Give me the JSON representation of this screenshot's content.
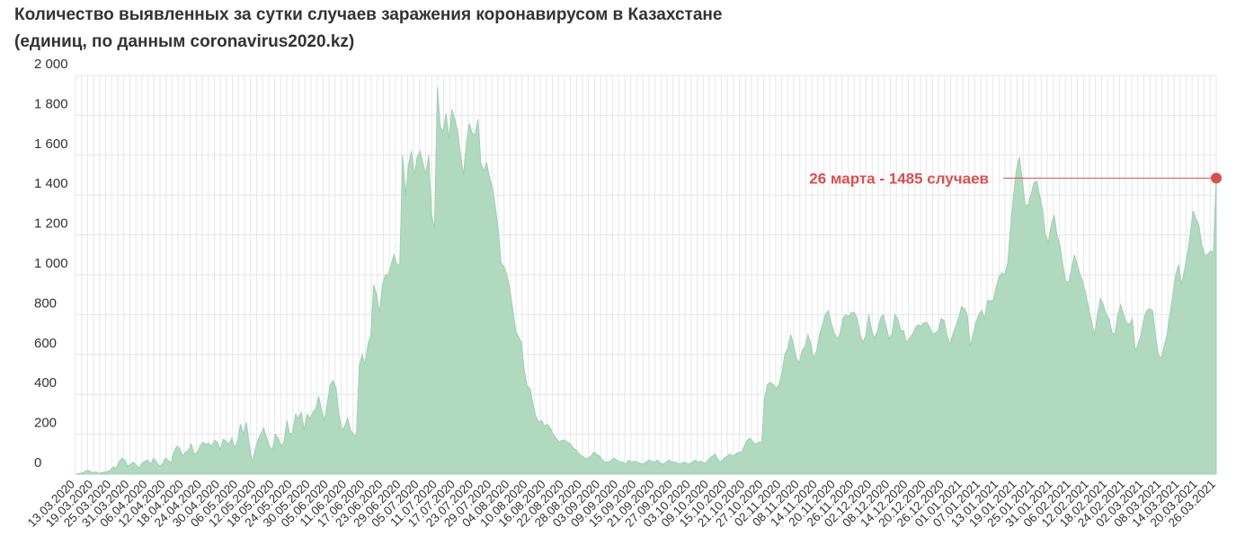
{
  "header": {
    "title_line1": "Количество выявленных за сутки случаев заражения коронавирусом в Казахстане",
    "title_line2": "(единиц, по данным coronavirus2020.kz)"
  },
  "colors": {
    "area_fill": "#b0d9c0",
    "area_stroke": "#9ecfb1",
    "grid": "#e6e6e6",
    "annotation": "#d94f4f"
  },
  "chart_data": {
    "type": "area",
    "title": "Количество выявленных за сутки случаев заражения коронавирусом в Казахстане (единиц, по данным coronavirus2020.kz)",
    "xlabel": "",
    "ylabel": "",
    "ylim": [
      0,
      2000
    ],
    "yticks": [
      0,
      200,
      400,
      600,
      800,
      1000,
      1200,
      1400,
      1600,
      1800,
      2000
    ],
    "ytick_labels": [
      "0",
      "200",
      "400",
      "600",
      "800",
      "1 000",
      "1 200",
      "1 400",
      "1 600",
      "1 800",
      "2 000"
    ],
    "x_tick_labels": [
      "13.03.2020",
      "19.03.2020",
      "25.03.2020",
      "31.03.2020",
      "06.04.2020",
      "12.04.2020",
      "18.04.2020",
      "24.04.2020",
      "30.04.2020",
      "06.05.2020",
      "12.05.2020",
      "18.05.2020",
      "24.05.2020",
      "30.05.2020",
      "05.06.2020",
      "11.06.2020",
      "17.06.2020",
      "23.06.2020",
      "29.06.2020",
      "05.07.2020",
      "11.07.2020",
      "17.07.2020",
      "23.07.2020",
      "29.07.2020",
      "04.08.2020",
      "10.08.2020",
      "16.08.2020",
      "22.08.2020",
      "28.08.2020",
      "03.09.2020",
      "09.09.2020",
      "15.09.2020",
      "21.09.2020",
      "27.09.2020",
      "03.10.2020",
      "09.10.2020",
      "15.10.2020",
      "21.10.2020",
      "27.10.2020",
      "02.11.2020",
      "08.11.2020",
      "14.11.2020",
      "20.11.2020",
      "26.11.2020",
      "02.12.2020",
      "08.12.2020",
      "14.12.2020",
      "20.12.2020",
      "26.12.2020",
      "01.01.2021",
      "07.01.2021",
      "13.01.2021",
      "19.01.2021",
      "25.01.2021",
      "31.01.2021",
      "06.02.2021",
      "12.02.2021",
      "18.02.2021",
      "24.02.2021",
      "02.03.2021",
      "08.03.2021",
      "14.03.2021",
      "20.03.2021",
      "26.03.2021"
    ],
    "grid": true,
    "series": [
      {
        "values": [
          0,
          2,
          5,
          10,
          20,
          15,
          5,
          12,
          3,
          8,
          10,
          12,
          20,
          35,
          30,
          60,
          80,
          70,
          40,
          50,
          60,
          45,
          30,
          55,
          65,
          70,
          50,
          80,
          60,
          40,
          50,
          80,
          70,
          55,
          110,
          140,
          130,
          90,
          110,
          120,
          150,
          100,
          105,
          140,
          160,
          150,
          155,
          140,
          170,
          160,
          120,
          175,
          165,
          150,
          180,
          130,
          170,
          250,
          200,
          260,
          150,
          60,
          120,
          170,
          200,
          230,
          180,
          140,
          120,
          200,
          180,
          140,
          160,
          270,
          200,
          210,
          300,
          280,
          310,
          220,
          300,
          280,
          310,
          330,
          390,
          320,
          270,
          360,
          450,
          470,
          430,
          300,
          220,
          240,
          280,
          220,
          200,
          190,
          540,
          600,
          550,
          650,
          700,
          950,
          900,
          810,
          950,
          1000,
          1000,
          1050,
          1100,
          1050,
          1050,
          1600,
          1400,
          1550,
          1620,
          1500,
          1590,
          1620,
          1560,
          1500,
          1600,
          1300,
          1230,
          1940,
          1740,
          1720,
          1810,
          1680,
          1830,
          1780,
          1720,
          1600,
          1500,
          1660,
          1760,
          1710,
          1700,
          1780,
          1560,
          1520,
          1560,
          1490,
          1440,
          1340,
          1230,
          1060,
          1040,
          1000,
          930,
          830,
          720,
          690,
          660,
          520,
          440,
          430,
          350,
          290,
          260,
          270,
          240,
          250,
          230,
          200,
          180,
          160,
          170,
          170,
          160,
          150,
          130,
          120,
          100,
          90,
          80,
          80,
          90,
          110,
          100,
          90,
          70,
          60,
          60,
          70,
          80,
          70,
          60,
          60,
          50,
          70,
          60,
          65,
          60,
          55,
          50,
          60,
          70,
          65,
          60,
          70,
          55,
          50,
          60,
          70,
          60,
          60,
          55,
          50,
          60,
          55,
          50,
          60,
          70,
          60,
          65,
          55,
          60,
          80,
          90,
          100,
          70,
          60,
          80,
          90,
          100,
          90,
          100,
          110,
          110,
          140,
          170,
          180,
          160,
          150,
          160,
          160,
          380,
          450,
          460,
          450,
          430,
          450,
          510,
          600,
          630,
          700,
          650,
          580,
          560,
          620,
          640,
          700,
          650,
          580,
          620,
          700,
          750,
          800,
          820,
          760,
          710,
          680,
          700,
          780,
          800,
          790,
          810,
          810,
          780,
          700,
          660,
          700,
          800,
          720,
          680,
          720,
          780,
          800,
          740,
          680,
          700,
          800,
          780,
          720,
          720,
          660,
          680,
          700,
          730,
          750,
          740,
          760,
          760,
          740,
          700,
          710,
          720,
          780,
          770,
          700,
          650,
          700,
          740,
          780,
          840,
          830,
          800,
          640,
          700,
          760,
          800,
          820,
          780,
          870,
          870,
          870,
          940,
          990,
          1010,
          1000,
          1060,
          1250,
          1400,
          1530,
          1590,
          1480,
          1350,
          1350,
          1400,
          1460,
          1470,
          1400,
          1330,
          1200,
          1160,
          1250,
          1300,
          1200,
          1150,
          1050,
          970,
          960,
          1030,
          1100,
          1050,
          1000,
          960,
          900,
          830,
          760,
          700,
          800,
          880,
          850,
          800,
          780,
          710,
          700,
          800,
          850,
          800,
          760,
          750,
          780,
          620,
          650,
          700,
          780,
          820,
          830,
          820,
          700,
          600,
          580,
          640,
          700,
          800,
          900,
          1000,
          1050,
          950,
          1020,
          1100,
          1200,
          1320,
          1280,
          1250,
          1150,
          1100,
          1100,
          1120,
          1110,
          1485
        ]
      }
    ],
    "annotations": [
      {
        "text": "26 марта - 1485 случаев",
        "x": "26.03.2021",
        "y": 1485
      }
    ]
  }
}
